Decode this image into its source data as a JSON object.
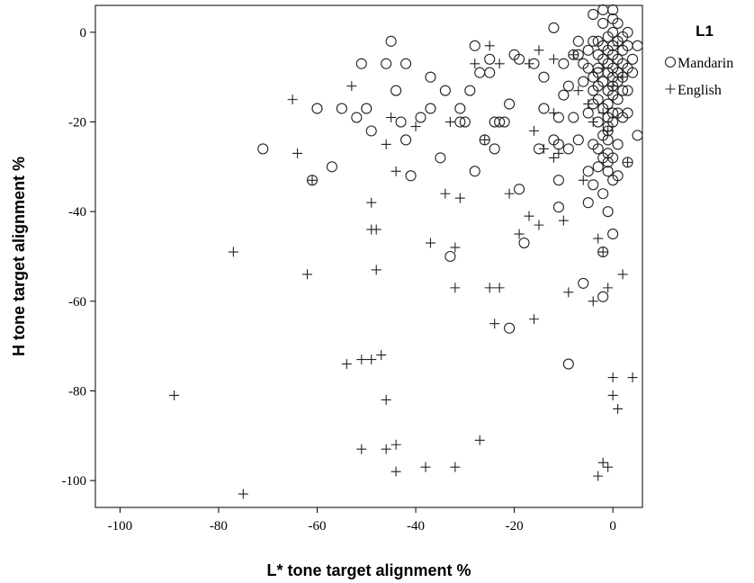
{
  "chart_data": {
    "type": "scatter",
    "xlabel": "L* tone target alignment %",
    "ylabel": "H tone target alignment %",
    "xlim": [
      -105,
      6
    ],
    "ylim": [
      -106,
      6
    ],
    "x_ticks": [
      -100,
      -80,
      -60,
      -40,
      -20,
      0
    ],
    "y_ticks": [
      0,
      -20,
      -40,
      -60,
      -80,
      -100
    ],
    "grid": false,
    "legend": {
      "title": "L1",
      "placement": "right"
    },
    "series": [
      {
        "name": "Mandarin",
        "marker": "circle",
        "points": [
          [
            -71,
            -26
          ],
          [
            -61,
            -33
          ],
          [
            -60,
            -17
          ],
          [
            -57,
            -30
          ],
          [
            -55,
            -17
          ],
          [
            -52,
            -19
          ],
          [
            -51,
            -7
          ],
          [
            -50,
            -17
          ],
          [
            -49,
            -22
          ],
          [
            -46,
            -7
          ],
          [
            -45,
            -2
          ],
          [
            -44,
            -13
          ],
          [
            -43,
            -20
          ],
          [
            -42,
            -7
          ],
          [
            -42,
            -24
          ],
          [
            -41,
            -32
          ],
          [
            -39,
            -19
          ],
          [
            -37,
            -17
          ],
          [
            -37,
            -10
          ],
          [
            -35,
            -28
          ],
          [
            -34,
            -13
          ],
          [
            -33,
            -50
          ],
          [
            -31,
            -20
          ],
          [
            -31,
            -17
          ],
          [
            -30,
            -20
          ],
          [
            -29,
            -13
          ],
          [
            -28,
            -3
          ],
          [
            -28,
            -31
          ],
          [
            -27,
            -9
          ],
          [
            -26,
            -24
          ],
          [
            -25,
            -9
          ],
          [
            -25,
            -6
          ],
          [
            -24,
            -26
          ],
          [
            -24,
            -20
          ],
          [
            -23,
            -20
          ],
          [
            -22,
            -20
          ],
          [
            -21,
            -66
          ],
          [
            -21,
            -16
          ],
          [
            -20,
            -5
          ],
          [
            -19,
            -6
          ],
          [
            -19,
            -35
          ],
          [
            -18,
            -47
          ],
          [
            -16,
            -7
          ],
          [
            -15,
            -26
          ],
          [
            -14,
            -10
          ],
          [
            -14,
            -17
          ],
          [
            -12,
            1
          ],
          [
            -12,
            -24
          ],
          [
            -11,
            -19
          ],
          [
            -11,
            -25
          ],
          [
            -11,
            -33
          ],
          [
            -11,
            -39
          ],
          [
            -10,
            -7
          ],
          [
            -10,
            -14
          ],
          [
            -9,
            -74
          ],
          [
            -9,
            -12
          ],
          [
            -9,
            -26
          ],
          [
            -8,
            -19
          ],
          [
            -8,
            -5
          ],
          [
            -7,
            -5
          ],
          [
            -7,
            -24
          ],
          [
            -7,
            -2
          ],
          [
            -6,
            -56
          ],
          [
            -6,
            -7
          ],
          [
            -6,
            -11
          ],
          [
            -5,
            -31
          ],
          [
            -5,
            -38
          ],
          [
            -5,
            -18
          ],
          [
            -5,
            -8
          ],
          [
            -5,
            -4
          ],
          [
            -4,
            -2
          ],
          [
            -4,
            -34
          ],
          [
            -4,
            -13
          ],
          [
            -4,
            -25
          ],
          [
            -4,
            -16
          ],
          [
            -4,
            -10
          ],
          [
            -4,
            4
          ],
          [
            -3,
            -2
          ],
          [
            -3,
            -5
          ],
          [
            -3,
            -9
          ],
          [
            -3,
            -12
          ],
          [
            -3,
            -15
          ],
          [
            -3,
            -20
          ],
          [
            -3,
            -26
          ],
          [
            -3,
            -30
          ],
          [
            -3,
            -8
          ],
          [
            -2,
            -36
          ],
          [
            -2,
            -59
          ],
          [
            -2,
            -49
          ],
          [
            -2,
            -3
          ],
          [
            -2,
            -6
          ],
          [
            -2,
            -11
          ],
          [
            -2,
            -17
          ],
          [
            -2,
            -23
          ],
          [
            -2,
            -28
          ],
          [
            -2,
            5
          ],
          [
            -2,
            2
          ],
          [
            -1,
            -40
          ],
          [
            -1,
            -1
          ],
          [
            -1,
            -4
          ],
          [
            -1,
            -7
          ],
          [
            -1,
            -9
          ],
          [
            -1,
            -13
          ],
          [
            -1,
            -16
          ],
          [
            -1,
            -19
          ],
          [
            -1,
            -21
          ],
          [
            -1,
            -24
          ],
          [
            -1,
            -27
          ],
          [
            -1,
            -31
          ],
          [
            -1,
            -22
          ],
          [
            0,
            -45
          ],
          [
            0,
            -33
          ],
          [
            0,
            -28
          ],
          [
            0,
            -18
          ],
          [
            0,
            -14
          ],
          [
            0,
            -10
          ],
          [
            0,
            -8
          ],
          [
            0,
            -5
          ],
          [
            0,
            -3
          ],
          [
            0,
            0
          ],
          [
            0,
            3
          ],
          [
            0,
            5
          ],
          [
            0,
            -12
          ],
          [
            0,
            -20
          ],
          [
            1,
            -6
          ],
          [
            1,
            -2
          ],
          [
            1,
            -9
          ],
          [
            1,
            -15
          ],
          [
            1,
            -18
          ],
          [
            1,
            -32
          ],
          [
            1,
            2
          ],
          [
            1,
            -25
          ],
          [
            2,
            -1
          ],
          [
            2,
            -4
          ],
          [
            2,
            -10
          ],
          [
            2,
            -13
          ],
          [
            2,
            -19
          ],
          [
            2,
            -7
          ],
          [
            3,
            -3
          ],
          [
            3,
            -8
          ],
          [
            3,
            -13
          ],
          [
            3,
            -18
          ],
          [
            3,
            -29
          ],
          [
            3,
            0
          ],
          [
            4,
            -6
          ],
          [
            4,
            -9
          ],
          [
            5,
            -3
          ],
          [
            5,
            -23
          ],
          [
            1,
            -11
          ],
          [
            -1,
            -29
          ]
        ]
      },
      {
        "name": "English",
        "marker": "plus",
        "points": [
          [
            -89,
            -81
          ],
          [
            -77,
            -49
          ],
          [
            -75,
            -103
          ],
          [
            -65,
            -15
          ],
          [
            -64,
            -27
          ],
          [
            -62,
            -54
          ],
          [
            -61,
            -33
          ],
          [
            -54,
            -74
          ],
          [
            -53,
            -12
          ],
          [
            -51,
            -73
          ],
          [
            -51,
            -93
          ],
          [
            -49,
            -38
          ],
          [
            -49,
            -44
          ],
          [
            -49,
            -73
          ],
          [
            -48,
            -44
          ],
          [
            -48,
            -53
          ],
          [
            -47,
            -72
          ],
          [
            -46,
            -82
          ],
          [
            -46,
            -93
          ],
          [
            -46,
            -25
          ],
          [
            -45,
            -19
          ],
          [
            -44,
            -92
          ],
          [
            -44,
            -31
          ],
          [
            -44,
            -98
          ],
          [
            -40,
            -21
          ],
          [
            -38,
            -97
          ],
          [
            -37,
            -47
          ],
          [
            -34,
            -36
          ],
          [
            -33,
            -20
          ],
          [
            -32,
            -48
          ],
          [
            -32,
            -57
          ],
          [
            -32,
            -97
          ],
          [
            -31,
            -37
          ],
          [
            -28,
            -7
          ],
          [
            -27,
            -91
          ],
          [
            -26,
            -24
          ],
          [
            -25,
            -57
          ],
          [
            -25,
            -3
          ],
          [
            -24,
            -65
          ],
          [
            -23,
            -7
          ],
          [
            -23,
            -57
          ],
          [
            -21,
            -36
          ],
          [
            -19,
            -45
          ],
          [
            -17,
            -41
          ],
          [
            -17,
            -7
          ],
          [
            -16,
            -64
          ],
          [
            -16,
            -22
          ],
          [
            -15,
            -4
          ],
          [
            -15,
            -43
          ],
          [
            -14,
            -26
          ],
          [
            -12,
            -6
          ],
          [
            -12,
            -18
          ],
          [
            -12,
            -28
          ],
          [
            -11,
            -27
          ],
          [
            -10,
            -42
          ],
          [
            -9,
            -58
          ],
          [
            -8,
            -5
          ],
          [
            -7,
            -13
          ],
          [
            -6,
            -33
          ],
          [
            -5,
            -16
          ],
          [
            -4,
            -60
          ],
          [
            -3,
            -99
          ],
          [
            -3,
            -46
          ],
          [
            -2,
            -96
          ],
          [
            -2,
            -18
          ],
          [
            -2,
            -49
          ],
          [
            -1,
            -97
          ],
          [
            -1,
            -57
          ],
          [
            -1,
            -22
          ],
          [
            0,
            -77
          ],
          [
            0,
            -81
          ],
          [
            1,
            -84
          ],
          [
            2,
            -54
          ],
          [
            4,
            -77
          ],
          [
            3,
            -29
          ],
          [
            2,
            -10
          ],
          [
            1,
            -3
          ],
          [
            0,
            -12
          ],
          [
            -2,
            -8
          ],
          [
            -4,
            -20
          ]
        ]
      }
    ]
  }
}
